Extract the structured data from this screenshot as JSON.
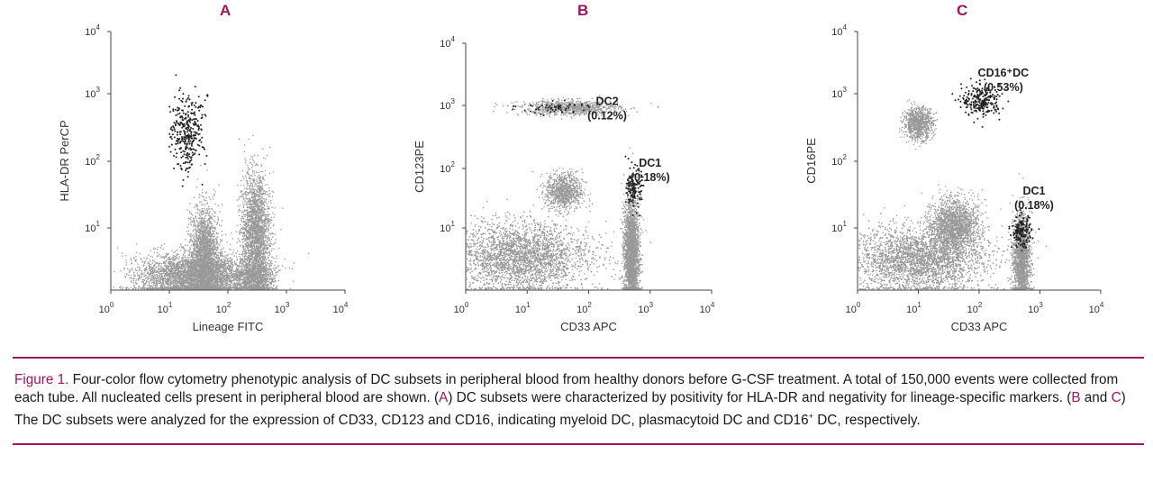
{
  "chart_data": [
    {
      "type": "scatter",
      "panel_label": "A",
      "xlabel": "Lineage FITC",
      "ylabel": "HLA-DR PerCP",
      "xscale": "log",
      "yscale": "log",
      "xlim": [
        1,
        10000
      ],
      "ylim": [
        1,
        10000
      ],
      "x_ticks": [
        "10",
        "10",
        "10",
        "10",
        "10"
      ],
      "x_tick_exp": [
        "0",
        "1",
        "2",
        "3",
        "4"
      ],
      "y_ticks": [
        "10",
        "10",
        "10",
        "10"
      ],
      "y_tick_exp": [
        "1",
        "2",
        "3",
        "4"
      ],
      "grid": false,
      "series": [
        {
          "color": "#999999",
          "points": 9000,
          "clusters": [
            {
              "cx": 30,
              "cy": 1.6,
              "sx": 0.5,
              "sy": 0.18,
              "w": 0.45
            },
            {
              "cx": 40,
              "cy": 4,
              "sx": 0.12,
              "sy": 0.35,
              "w": 0.2
            },
            {
              "cx": 300,
              "cy": 8,
              "sx": 0.12,
              "sy": 0.45,
              "w": 0.25
            },
            {
              "cx": 300,
              "cy": 1.5,
              "sx": 0.15,
              "sy": 0.15,
              "w": 0.1
            }
          ]
        },
        {
          "color": "#222222",
          "points": 330,
          "clusters": [
            {
              "cx": 20,
              "cy": 280,
              "sx": 0.14,
              "sy": 0.28,
              "w": 1
            }
          ]
        }
      ],
      "annotations": []
    },
    {
      "type": "scatter",
      "panel_label": "B",
      "xlabel": "CD33 APC",
      "ylabel": "CD123PE",
      "xscale": "log",
      "yscale": "log",
      "xlim": [
        1,
        10000
      ],
      "ylim": [
        1,
        10000
      ],
      "x_ticks": [
        "10",
        "10",
        "10",
        "10",
        "10"
      ],
      "x_tick_exp": [
        "0",
        "1",
        "2",
        "3",
        "4"
      ],
      "y_ticks": [
        "10",
        "10",
        "10",
        "10"
      ],
      "y_tick_exp": [
        "1",
        "2",
        "3",
        "4"
      ],
      "grid": false,
      "series": [
        {
          "color": "#999999",
          "points": 9000,
          "clusters": [
            {
              "cx": 8,
              "cy": 3.5,
              "sx": 0.55,
              "sy": 0.28,
              "w": 0.5
            },
            {
              "cx": 40,
              "cy": 40,
              "sx": 0.15,
              "sy": 0.15,
              "w": 0.1
            },
            {
              "cx": 500,
              "cy": 4,
              "sx": 0.06,
              "sy": 0.45,
              "w": 0.3
            },
            {
              "cx": 50,
              "cy": 900,
              "sx": 0.4,
              "sy": 0.06,
              "w": 0.1
            }
          ]
        },
        {
          "color": "#222222",
          "points": 200,
          "clusters": [
            {
              "cx": 550,
              "cy": 45,
              "sx": 0.06,
              "sy": 0.16,
              "w": 0.7
            },
            {
              "cx": 30,
              "cy": 900,
              "sx": 0.3,
              "sy": 0.05,
              "w": 0.3
            }
          ]
        }
      ],
      "annotations": [
        {
          "line1": "DC2",
          "line2": "(0.12%)",
          "x": 200,
          "y": 1000
        },
        {
          "line1": "DC1",
          "line2": "(0.18%)",
          "x": 1000,
          "y": 100
        }
      ]
    },
    {
      "type": "scatter",
      "panel_label": "C",
      "xlabel": "CD33 APC",
      "ylabel": "CD16PE",
      "xscale": "log",
      "yscale": "log",
      "xlim": [
        1,
        10000
      ],
      "ylim": [
        1,
        10000
      ],
      "x_ticks": [
        "10",
        "10",
        "10",
        "10",
        "10"
      ],
      "x_tick_exp": [
        "0",
        "1",
        "2",
        "3",
        "4"
      ],
      "y_ticks": [
        "10",
        "10",
        "10",
        "10"
      ],
      "y_tick_exp": [
        "1",
        "2",
        "3",
        "4"
      ],
      "grid": false,
      "series": [
        {
          "color": "#999999",
          "points": 9000,
          "clusters": [
            {
              "cx": 10,
              "cy": 3,
              "sx": 0.55,
              "sy": 0.25,
              "w": 0.5
            },
            {
              "cx": 40,
              "cy": 10,
              "sx": 0.2,
              "sy": 0.2,
              "w": 0.2
            },
            {
              "cx": 500,
              "cy": 3,
              "sx": 0.07,
              "sy": 0.35,
              "w": 0.2
            },
            {
              "cx": 10,
              "cy": 380,
              "sx": 0.12,
              "sy": 0.12,
              "w": 0.1
            }
          ]
        },
        {
          "color": "#222222",
          "points": 420,
          "clusters": [
            {
              "cx": 110,
              "cy": 850,
              "sx": 0.16,
              "sy": 0.12,
              "w": 0.6
            },
            {
              "cx": 500,
              "cy": 8,
              "sx": 0.08,
              "sy": 0.12,
              "w": 0.4
            }
          ]
        }
      ],
      "annotations": [
        {
          "line1": "CD16⁺DC",
          "line2": "(0.53%)",
          "x": 250,
          "y": 2000
        },
        {
          "line1": "DC1",
          "line2": "(0.18%)",
          "x": 800,
          "y": 30
        }
      ]
    }
  ],
  "caption": {
    "figure_label": "Figure 1.",
    "t1": "Four-color flow cytometry phenotypic analysis of DC subsets in peripheral blood from healthy donors before G-CSF treatment. A total of 150,000 events were collected from each tube. All nucleated cells present in peripheral blood are shown. (",
    "ref_a": "A",
    "t2": ") DC subsets were characterized by positivity for HLA-DR and negativity for lineage-specific markers. (",
    "ref_b": "B",
    "t3": " and ",
    "ref_c": "C",
    "t4": ") The DC subsets were analyzed for the expression of CD33, CD123 and CD16, indicating myeloid DC, plasmacytoid DC and CD16",
    "sup": "+",
    "t5": " DC, respectively."
  },
  "colors": {
    "accent": "#a0135f",
    "dots_light": "#999999",
    "dots_dark": "#222222"
  }
}
